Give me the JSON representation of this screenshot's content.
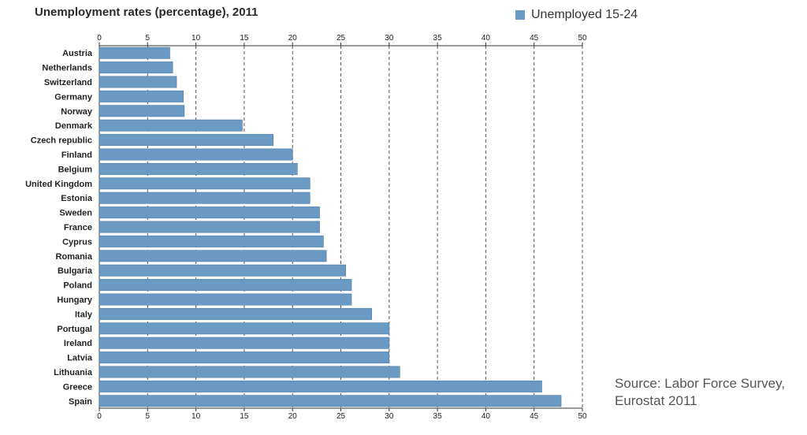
{
  "chart_data": {
    "type": "bar",
    "orientation": "horizontal",
    "title": "Unemployment rates (percentage), 2011",
    "xlim": [
      0,
      50
    ],
    "ticks": [
      0,
      5,
      10,
      15,
      20,
      25,
      30,
      35,
      40,
      45,
      50
    ],
    "grid": "vertical dashed",
    "legend_position": "top-right",
    "series": [
      {
        "name": "Unemployed 15-24",
        "color": "#6a9ac4"
      }
    ],
    "categories": [
      "Austria",
      "Netherlands",
      "Switzerland",
      "Germany",
      "Norway",
      "Denmark",
      "Czech republic",
      "Finland",
      "Belgium",
      "United Kingdom",
      "Estonia",
      "Sweden",
      "France",
      "Cyprus",
      "Romania",
      "Bulgaria",
      "Poland",
      "Hungary",
      "Italy",
      "Portugal",
      "Ireland",
      "Latvia",
      "Lithuania",
      "Greece",
      "Spain"
    ],
    "values": [
      7.3,
      7.6,
      8.0,
      8.7,
      8.8,
      14.8,
      18.0,
      20.0,
      20.5,
      21.8,
      21.8,
      22.8,
      22.8,
      23.2,
      23.5,
      25.5,
      26.1,
      26.1,
      28.2,
      30.0,
      30.0,
      30.0,
      31.1,
      45.8,
      47.8
    ],
    "source": "Source: Labor Force Survey, Eurostat 2011"
  },
  "colors": {
    "bar": "#6a9ac4",
    "bar_border": "#4f7fa8",
    "grid": "#555555",
    "axis": "#333333"
  }
}
